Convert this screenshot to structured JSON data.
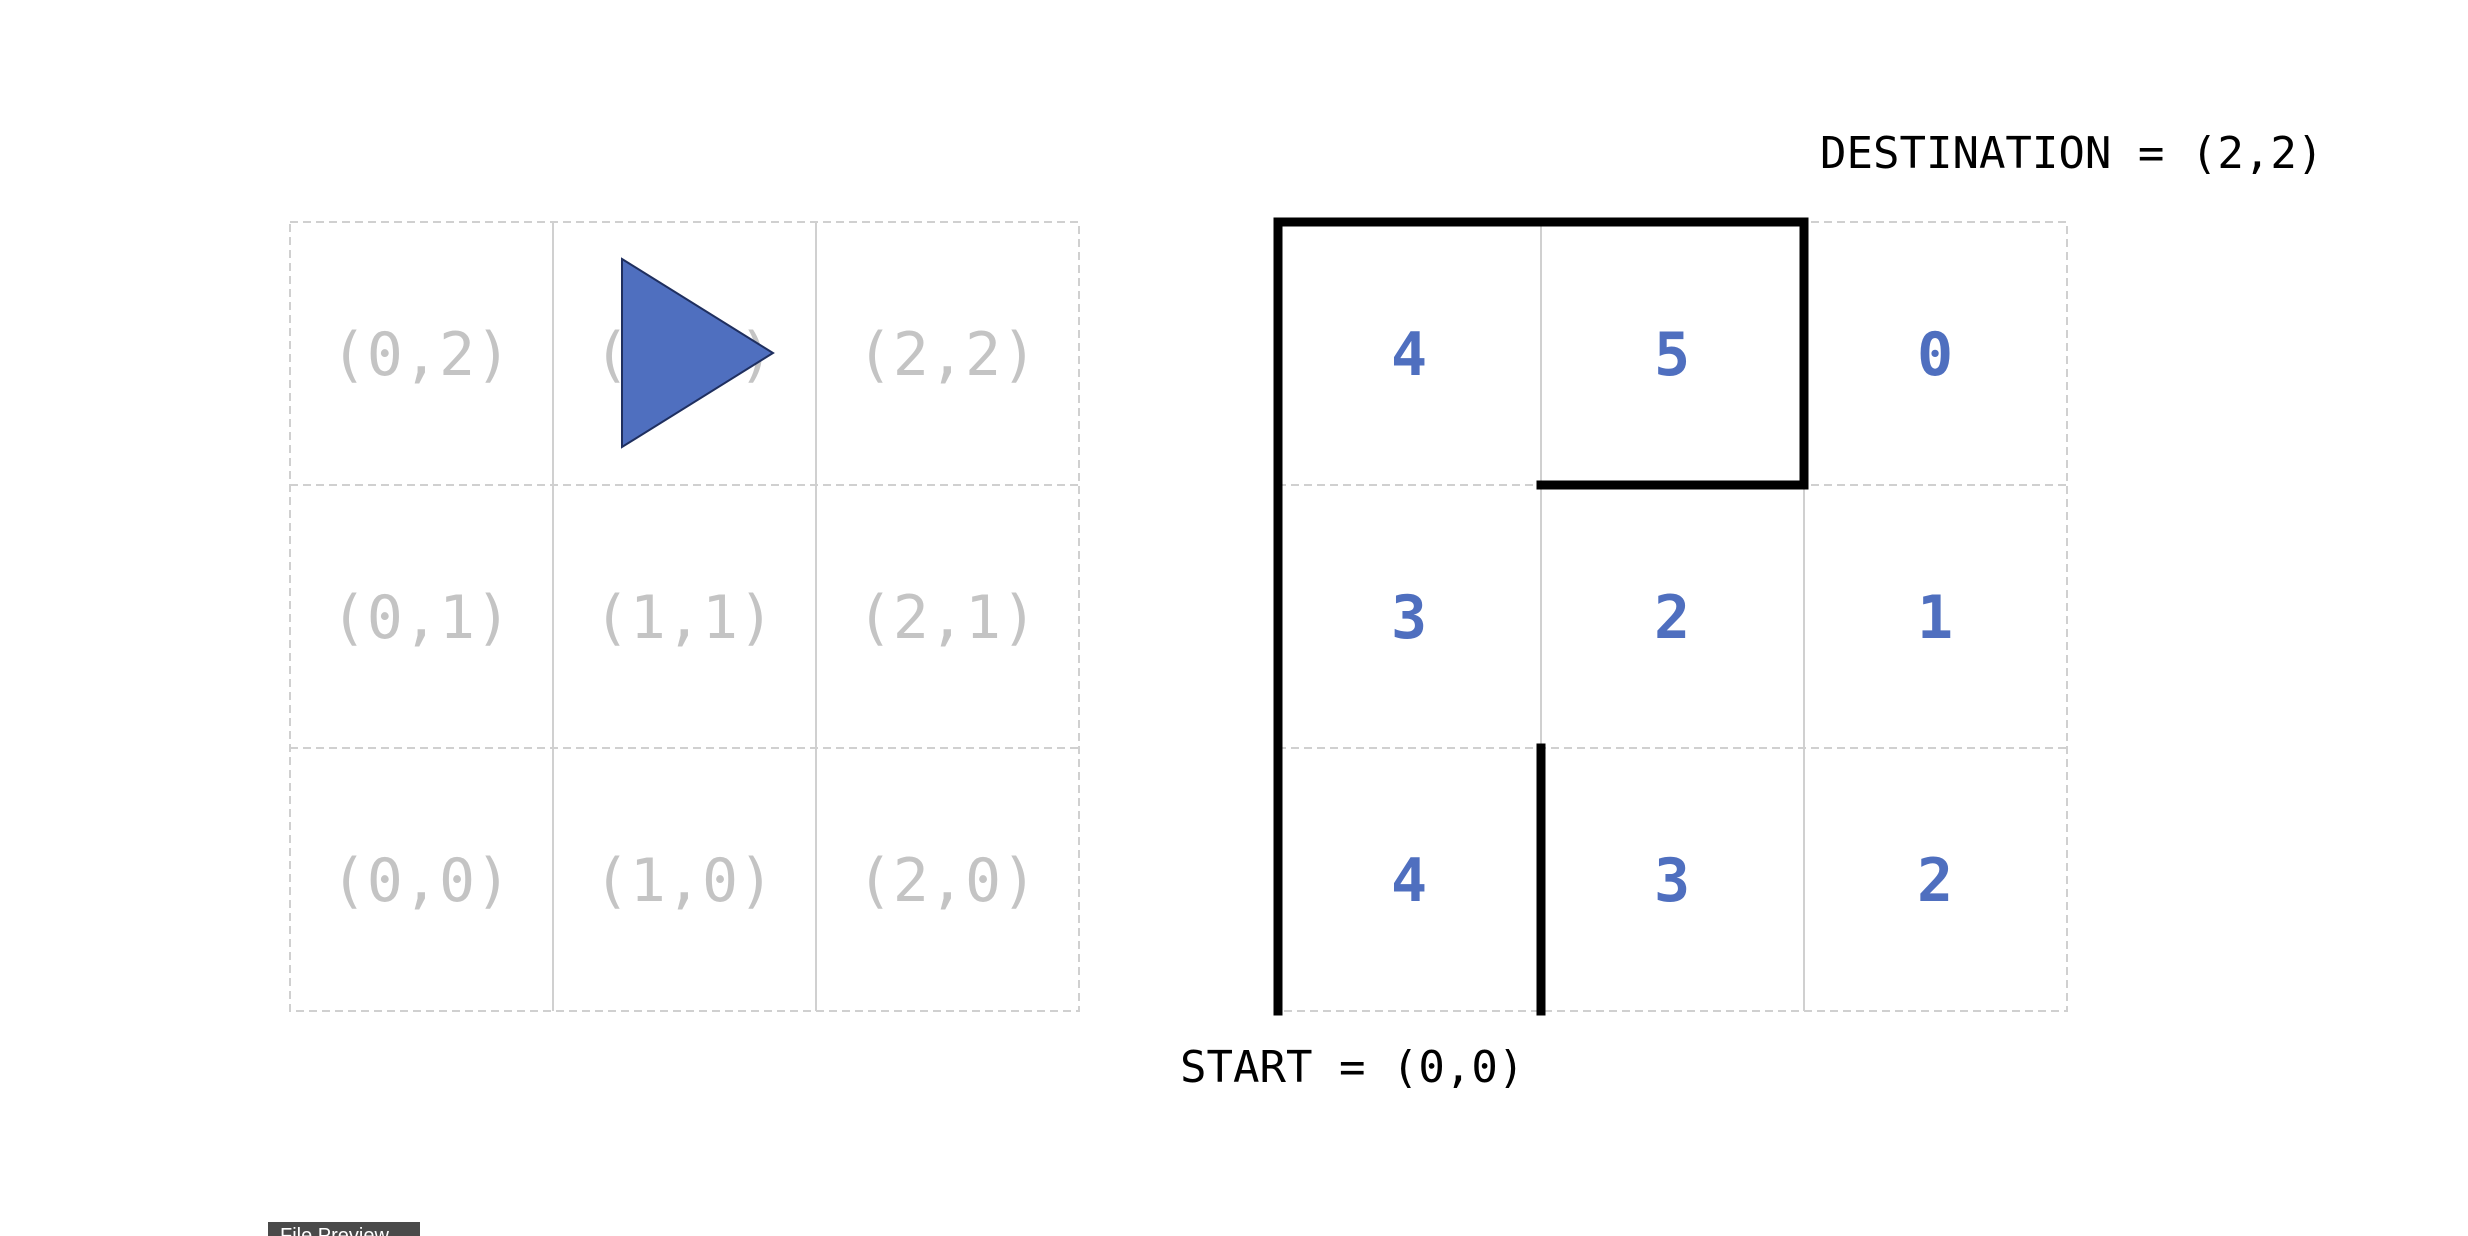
{
  "coordinate_grid": {
    "rows": [
      [
        "(0,2)",
        "(1,2)",
        "(2,2)"
      ],
      [
        "(0,1)",
        "(1,1)",
        "(2,1)"
      ],
      [
        "(0,0)",
        "(1,0)",
        "(2,0)"
      ]
    ],
    "agent": {
      "cell": "(1,2)",
      "direction": "right",
      "color": "#4f6fbf"
    }
  },
  "distance_grid": {
    "rows": [
      [
        "4",
        "5",
        "0"
      ],
      [
        "3",
        "2",
        "1"
      ],
      [
        "4",
        "3",
        "2"
      ]
    ],
    "number_color": "#4f6fbf",
    "wall_color": "#000000"
  },
  "destination_label": "DESTINATION = (2,2)",
  "start_label": "START = (0,0)",
  "status_tab": {
    "label": "File Preview"
  }
}
